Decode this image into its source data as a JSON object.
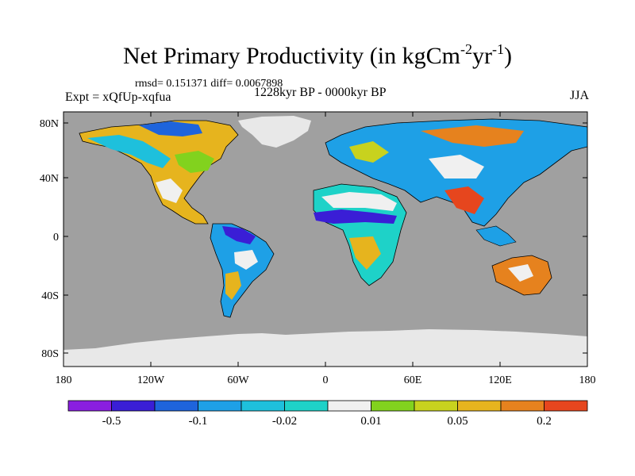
{
  "title": {
    "main": "Net Primary Productivity (in kgCm",
    "sup1": "-2",
    "mid": "yr",
    "sup2": "-1",
    "end": ")"
  },
  "stats": "rmsd= 0.151371 diff= 0.0067898",
  "experiment": "Expt = xQfUp-xqfua",
  "period": "1228kyr BP - 0000kyr BP",
  "season": "JJA",
  "colors": {
    "ocean": "#a0a0a0",
    "ice": "#e8e8e8",
    "neutral": "#f0f0f0"
  },
  "map": {
    "lat_ticks": [
      "80N",
      "40N",
      "0",
      "40S",
      "80S"
    ],
    "lon_ticks": [
      "180",
      "120W",
      "60W",
      "0",
      "60E",
      "120E",
      "180"
    ]
  },
  "colorbar": {
    "colors": [
      "#8a1ee0",
      "#3a1ed6",
      "#1e64dc",
      "#1ea0e6",
      "#1ec0dc",
      "#1ed2c8",
      "#f0f0f0",
      "#82d21e",
      "#c8d21e",
      "#e6b41e",
      "#e6821e",
      "#e6461e"
    ],
    "labels": [
      "-0.5",
      "-0.1",
      "-0.02",
      "0.01",
      "0.05",
      "0.2"
    ]
  }
}
